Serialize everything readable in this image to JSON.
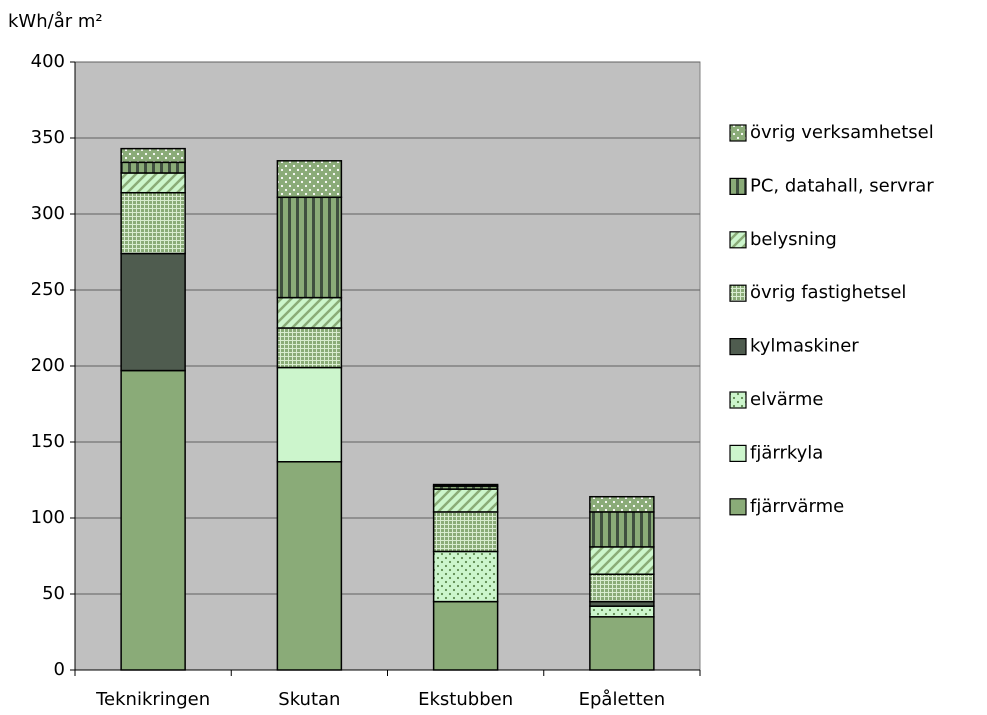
{
  "chart_data": {
    "type": "stacked_bar",
    "y_label": "kWh/år m²",
    "categories": [
      "Teknikringen",
      "Skutan",
      "Ekstubben",
      "Epåletten"
    ],
    "series": [
      {
        "name": "fjärrvärme",
        "color": "#8aab78",
        "pattern": "none",
        "values": [
          197,
          137,
          45,
          35
        ]
      },
      {
        "name": "fjärrkyla",
        "color": "#ccf5cc",
        "pattern": "none",
        "values": [
          0,
          62,
          0,
          0
        ]
      },
      {
        "name": "elvärme",
        "color": "#ccf5cc",
        "pattern": "dots",
        "pattern_color": "#5e8a50",
        "values": [
          0,
          0,
          33,
          7
        ]
      },
      {
        "name": "kylmaskiner",
        "color": "#4f5c4f",
        "pattern": "none",
        "values": [
          77,
          0,
          0,
          3
        ]
      },
      {
        "name": "övrig fastighetsel",
        "color": "#8aab78",
        "pattern": "grid",
        "pattern_color": "#d8ecd0",
        "values": [
          40,
          26,
          26,
          18
        ]
      },
      {
        "name": "belysning",
        "color": "#ccf5cc",
        "pattern": "diagonal",
        "pattern_color": "#8aab78",
        "values": [
          13,
          20,
          15,
          18
        ]
      },
      {
        "name": "PC, datahall, servrar",
        "color": "#8aab78",
        "pattern": "stripes",
        "pattern_color": "#3f4f3f",
        "values": [
          7,
          66,
          2,
          23
        ]
      },
      {
        "name": "övrig verksamhetsel",
        "color": "#8aab78",
        "pattern": "dots",
        "pattern_color": "#ffffff",
        "values": [
          9,
          24,
          1,
          10
        ]
      }
    ],
    "ylim": [
      0,
      400
    ],
    "yticks": [
      0,
      50,
      100,
      150,
      200,
      250,
      300,
      350,
      400
    ],
    "grid": true,
    "plot_background": "#c0c0c0",
    "legend": "right"
  }
}
